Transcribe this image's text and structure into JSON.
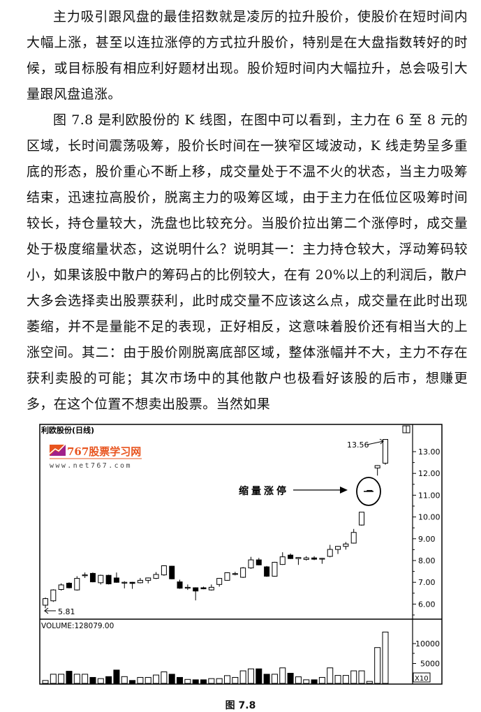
{
  "paragraphs": [
    "主力吸引跟风盘的最佳招数就是凌厉的拉升股价，使股价在短时间内大幅上涨，甚至以连拉涨停的方式拉升股价，特别是在大盘指数转好的时候，或目标股有相应利好题材出现。股价短时间内大幅拉升，总会吸引大量跟风盘追涨。",
    "图 7.8 是利欧股份的 K 线图，在图中可以看到，主力在 6 至 8 元的区域，长时间震荡吸筹，股价长时间在一狭窄区域波动，K 线走势呈多重底的形态，股价重心不断上移，成交量处于不温不火的状态，当主力吸筹结束，迅速拉高股价，脱离主力的吸筹区域，由于主力在低位区吸筹时间较长，持仓量较大，洗盘也比较充分。当股价拉出第二个涨停时，成交量处于极度缩量状态，这说明什么？说明其一：主力持仓较大，浮动筹码较小，如果该股中散户的筹码占的比例较大，在有 20%以上的利润后，散户大多会选择卖出股票获利，此时成交量不应该这么点，成交量在此时出现萎缩，并不是量能不足的表现，正好相反，这意味着股价还有相当大的上涨空间。其二：由于股价刚脱离底部区域，整体涨幅并不大，主力不存在获利卖股的可能；其次市场中的其他散户也极看好该股的后市，想赚更多，在这个位置不想卖出股票。当然如果"
  ],
  "figure": {
    "caption": "图 7.8",
    "logo_text": "767股票学习网",
    "logo_url_text": "www.net767.com",
    "logo_color": "#e8541e"
  },
  "chart_data": {
    "type": "candlestick",
    "title": "利欧股份(日线)",
    "annotation": "缩量涨停",
    "high_label": "13.56",
    "low_label": "5.81",
    "volume_label": "VOLUME:128079.00",
    "volume_unit": "X10",
    "price_ticks": [
      "13.00",
      "12.00",
      "11.00",
      "10.00",
      "9.00",
      "8.00",
      "7.00",
      "6.00"
    ],
    "volume_ticks": [
      "10000",
      "5000"
    ],
    "ylim": [
      5.3,
      13.9
    ],
    "candles": [
      [
        5.95,
        6.3,
        5.81,
        6.25
      ],
      [
        6.15,
        6.68,
        6.1,
        6.65
      ],
      [
        6.67,
        6.95,
        6.62,
        6.88
      ],
      [
        6.96,
        7.0,
        6.72,
        6.75
      ],
      [
        6.65,
        7.28,
        6.62,
        7.18
      ],
      [
        7.34,
        7.45,
        7.2,
        7.34
      ],
      [
        7.41,
        7.45,
        7.0,
        7.02
      ],
      [
        6.98,
        7.35,
        6.9,
        7.32
      ],
      [
        7.32,
        7.35,
        6.9,
        6.93
      ],
      [
        7.2,
        7.45,
        6.98,
        7.0
      ],
      [
        7.0,
        7.05,
        6.72,
        7.0
      ],
      [
        7.0,
        7.02,
        6.7,
        6.95
      ],
      [
        6.98,
        7.2,
        6.95,
        7.09
      ],
      [
        7.09,
        7.22,
        6.95,
        7.2
      ],
      [
        7.18,
        7.47,
        7.15,
        7.36
      ],
      [
        7.34,
        7.78,
        7.3,
        7.76
      ],
      [
        7.74,
        7.76,
        7.14,
        7.16
      ],
      [
        7.02,
        7.12,
        6.7,
        6.73
      ],
      [
        6.77,
        6.9,
        6.65,
        6.77
      ],
      [
        6.75,
        6.77,
        6.17,
        6.6
      ],
      [
        6.75,
        6.8,
        6.68,
        6.7
      ],
      [
        6.65,
        6.9,
        6.62,
        6.77
      ],
      [
        6.9,
        7.2,
        6.8,
        7.18
      ],
      [
        7.09,
        7.46,
        7.07,
        7.44
      ],
      [
        7.4,
        7.48,
        7.32,
        7.4
      ],
      [
        7.23,
        7.7,
        7.2,
        7.66
      ],
      [
        7.66,
        8.17,
        7.62,
        8.03
      ],
      [
        8.03,
        8.12,
        7.78,
        7.8
      ],
      [
        7.71,
        7.75,
        7.25,
        7.28
      ],
      [
        7.28,
        7.94,
        7.26,
        7.92
      ],
      [
        7.82,
        8.38,
        7.8,
        8.17
      ],
      [
        8.25,
        8.32,
        8.07,
        8.09
      ],
      [
        8.09,
        8.16,
        7.8,
        8.14
      ],
      [
        8.05,
        8.2,
        8.0,
        8.12
      ],
      [
        8.12,
        8.2,
        8.02,
        8.06
      ],
      [
        8.1,
        8.12,
        7.85,
        8.1
      ],
      [
        8.19,
        8.72,
        8.15,
        8.51
      ],
      [
        8.51,
        8.67,
        8.3,
        8.65
      ],
      [
        8.65,
        8.85,
        8.5,
        8.76
      ],
      [
        8.8,
        9.45,
        8.78,
        9.29
      ],
      [
        9.63,
        10.22,
        9.6,
        10.22
      ],
      [
        11.22,
        11.22,
        11.22,
        11.22
      ],
      [
        12.25,
        12.38,
        11.9,
        12.36
      ],
      [
        12.47,
        13.56,
        12.4,
        13.56
      ]
    ],
    "volume": [
      730,
      2300,
      2300,
      3050,
      2300,
      2300,
      1500,
      1200,
      1700,
      3350,
      1700,
      730,
      1500,
      1500,
      2100,
      2900,
      2300,
      1500,
      1000,
      900,
      900,
      1200,
      1200,
      1950,
      1500,
      3150,
      3650,
      3650,
      2300,
      2300,
      3900,
      2550,
      1650,
      900,
      900,
      1500,
      3900,
      2000,
      2000,
      3150,
      3150,
      500,
      9000,
      12900
    ]
  }
}
